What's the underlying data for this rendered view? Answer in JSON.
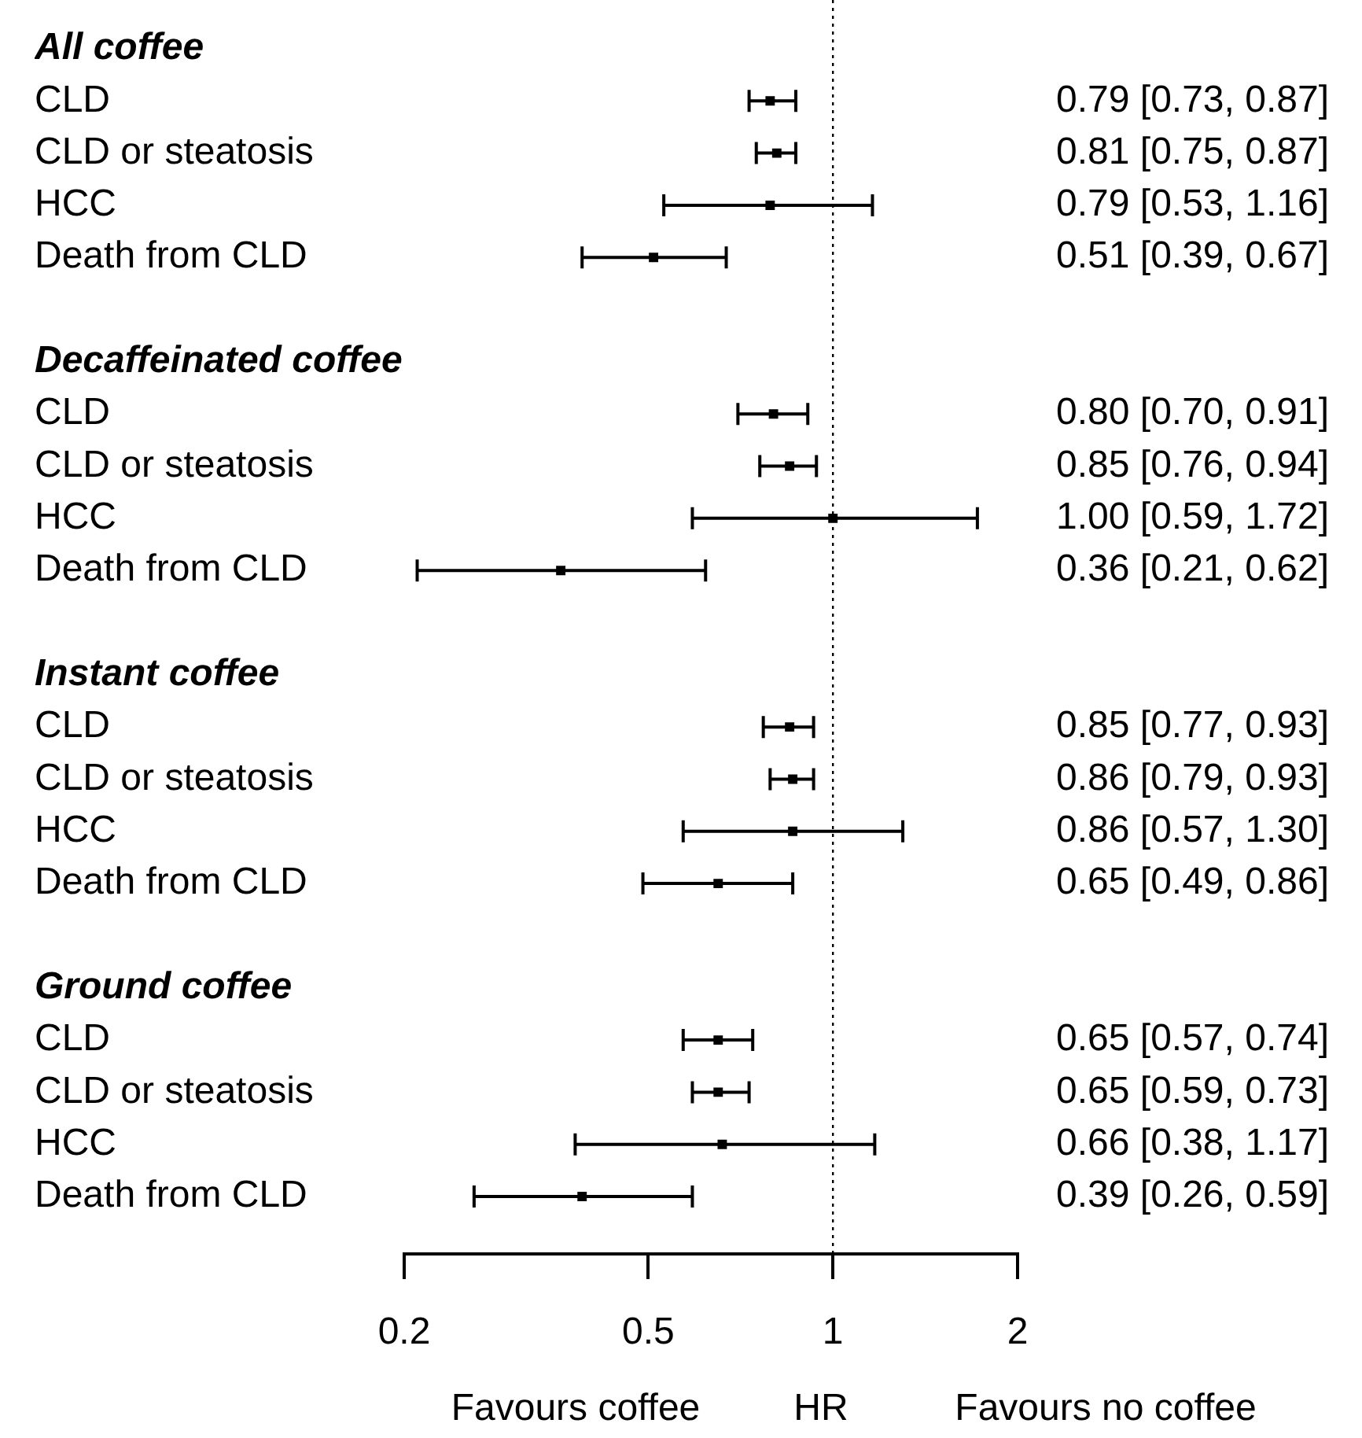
{
  "chart_data": {
    "type": "scatter",
    "orientation": "horizontal",
    "log": "x",
    "marker": "square",
    "legend": false,
    "categories": [
      "All coffee",
      "CLD",
      "CLD or steatosis",
      "HCC",
      "Death from CLD",
      null,
      "Decaffeinated coffee",
      "CLD",
      "CLD or steatosis",
      "HCC",
      "Death from CLD",
      null,
      "Instant coffee",
      "CLD",
      "CLD or steatosis",
      "HCC",
      "Death from CLD",
      null,
      "Ground coffee",
      "CLD",
      "CLD or steatosis",
      "HCC",
      "Death from CLD"
    ],
    "values": [
      null,
      0.79,
      0.81,
      0.79,
      0.51,
      null,
      null,
      0.8,
      0.85,
      1.0,
      0.36,
      null,
      null,
      0.85,
      0.86,
      0.86,
      0.65,
      null,
      null,
      0.65,
      0.65,
      0.66,
      0.39
    ],
    "errors": [
      null,
      [
        0.73,
        0.87
      ],
      [
        0.75,
        0.87
      ],
      [
        0.53,
        1.16
      ],
      [
        0.39,
        0.67
      ],
      null,
      null,
      [
        0.7,
        0.91
      ],
      [
        0.76,
        0.94
      ],
      [
        0.59,
        1.72
      ],
      [
        0.21,
        0.62
      ],
      null,
      null,
      [
        0.77,
        0.93
      ],
      [
        0.79,
        0.93
      ],
      [
        0.57,
        1.3
      ],
      [
        0.49,
        0.86
      ],
      null,
      null,
      [
        0.57,
        0.74
      ],
      [
        0.59,
        0.73
      ],
      [
        0.38,
        1.17
      ],
      [
        0.26,
        0.59
      ]
    ],
    "value_labels": [
      null,
      "0.79 [0.73, 0.87]",
      "0.81 [0.75, 0.87]",
      "0.79 [0.53, 1.16]",
      "0.51 [0.39, 0.67]",
      null,
      null,
      "0.80 [0.70, 0.91]",
      "0.85 [0.76, 0.94]",
      "1.00 [0.59, 1.72]",
      "0.36 [0.21, 0.62]",
      null,
      null,
      "0.85 [0.77, 0.93]",
      "0.86 [0.79, 0.93]",
      "0.86 [0.57, 1.30]",
      "0.65 [0.49, 0.86]",
      null,
      null,
      "0.65 [0.57, 0.74]",
      "0.65 [0.59, 0.73]",
      "0.66 [0.38, 1.17]",
      "0.39 [0.26, 0.59]"
    ],
    "color": "#000000",
    "xlim": [
      0.2,
      2
    ],
    "xticks": [
      0.2,
      0.5,
      1,
      2
    ],
    "xlabel": "HR",
    "annotations": [
      "Favours coffee",
      "Favours no coffee"
    ],
    "ref_lines": [
      {
        "axis": "x",
        "value": 1,
        "line_style": "dotted"
      }
    ]
  }
}
